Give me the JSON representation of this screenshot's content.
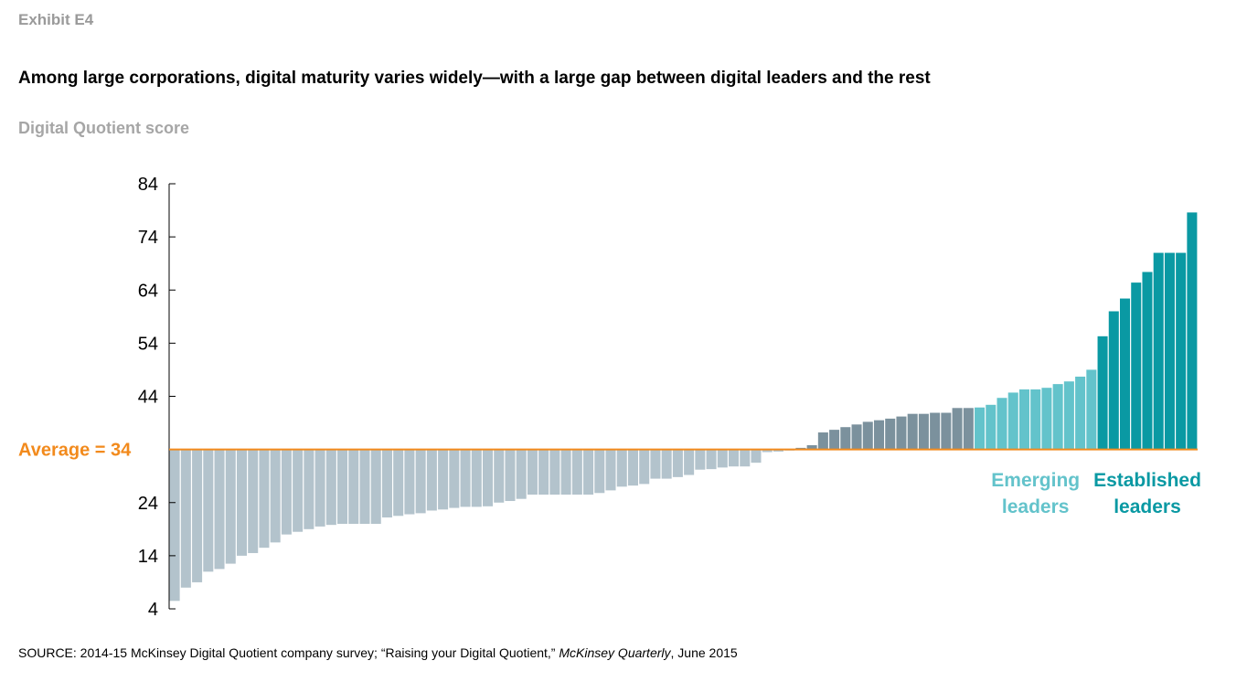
{
  "header": {
    "exhibit": "Exhibit E4",
    "title": "Among large corporations, digital maturity varies widely—with a large gap between digital leaders and the rest",
    "subtitle": "Digital Quotient score"
  },
  "footer": {
    "source_prefix": "SOURCE:  2014-15 McKinsey Digital Quotient company survey; “Raising your Digital Quotient,” ",
    "source_journal": "McKinsey Quarterly",
    "source_suffix": ", June 2015"
  },
  "colors": {
    "below_average": "#b3c3cc",
    "above_average": "#7b919d",
    "emerging_leaders": "#63c3cb",
    "established_leaders": "#0a99a3",
    "average_line": "#f28a1c",
    "axis": "#000000"
  },
  "chart_data": {
    "type": "bar",
    "title": "Among large corporations, digital maturity varies widely—with a large gap between digital leaders and the rest",
    "ylabel": "Digital Quotient score",
    "xlabel": "",
    "ylim": [
      4,
      84
    ],
    "yticks": [
      84,
      74,
      64,
      54,
      44,
      34,
      24,
      14,
      4
    ],
    "baseline": 34,
    "average": {
      "label": "Average = 34",
      "value": 34
    },
    "groups": [
      {
        "name": "Below average",
        "label": "",
        "count": 56
      },
      {
        "name": "Above average",
        "label": "",
        "count": 16
      },
      {
        "name": "Emerging leaders",
        "label": "Emerging leaders",
        "label_lines": [
          "Emerging",
          "leaders"
        ],
        "count": 11
      },
      {
        "name": "Established leaders",
        "label": "Established leaders",
        "label_lines": [
          "Established",
          "leaders"
        ],
        "count": 9
      }
    ],
    "values": [
      5.5,
      8,
      9,
      11,
      11.5,
      12.5,
      14,
      14.5,
      15.5,
      16.5,
      18,
      18.5,
      19,
      19.5,
      19.8,
      20,
      20,
      20,
      20,
      21.2,
      21.5,
      21.8,
      22,
      22.5,
      22.7,
      23,
      23.2,
      23.2,
      23.3,
      24,
      24.3,
      24.7,
      25.5,
      25.5,
      25.5,
      25.5,
      25.5,
      25.5,
      25.8,
      26.3,
      27,
      27.2,
      27.5,
      28.5,
      28.5,
      28.8,
      29.2,
      30.2,
      30.3,
      30.6,
      30.8,
      30.8,
      31.5,
      33.5,
      33.6,
      33.8,
      34.3,
      34.8,
      37.2,
      37.7,
      38.2,
      38.7,
      39.2,
      39.5,
      39.8,
      40.2,
      40.7,
      40.7,
      40.9,
      40.9,
      41.8,
      41.8,
      41.9,
      42.4,
      43.7,
      44.7,
      45.3,
      45.3,
      45.6,
      46.3,
      46.8,
      47.7,
      49,
      55.3,
      60,
      62.4,
      65.4,
      67.4,
      71,
      71,
      71,
      78.6
    ]
  }
}
